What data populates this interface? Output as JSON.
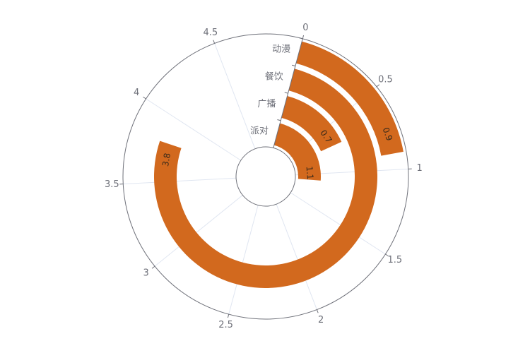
{
  "chart_data": {
    "type": "polar-bar",
    "title": "",
    "color": "#d2691e",
    "categories": [
      "动漫",
      "餐饮",
      "广播",
      "派对"
    ],
    "values": [
      0.9,
      3.8,
      0.7,
      1.1
    ],
    "angle_axis": {
      "min": 0,
      "max": 5,
      "tick_step": 0.5,
      "tick_labels": [
        "0",
        "0.5",
        "1",
        "1.5",
        "2",
        "2.5",
        "3",
        "3.5",
        "4",
        "4.5"
      ]
    },
    "grid": true,
    "legend": "none"
  }
}
